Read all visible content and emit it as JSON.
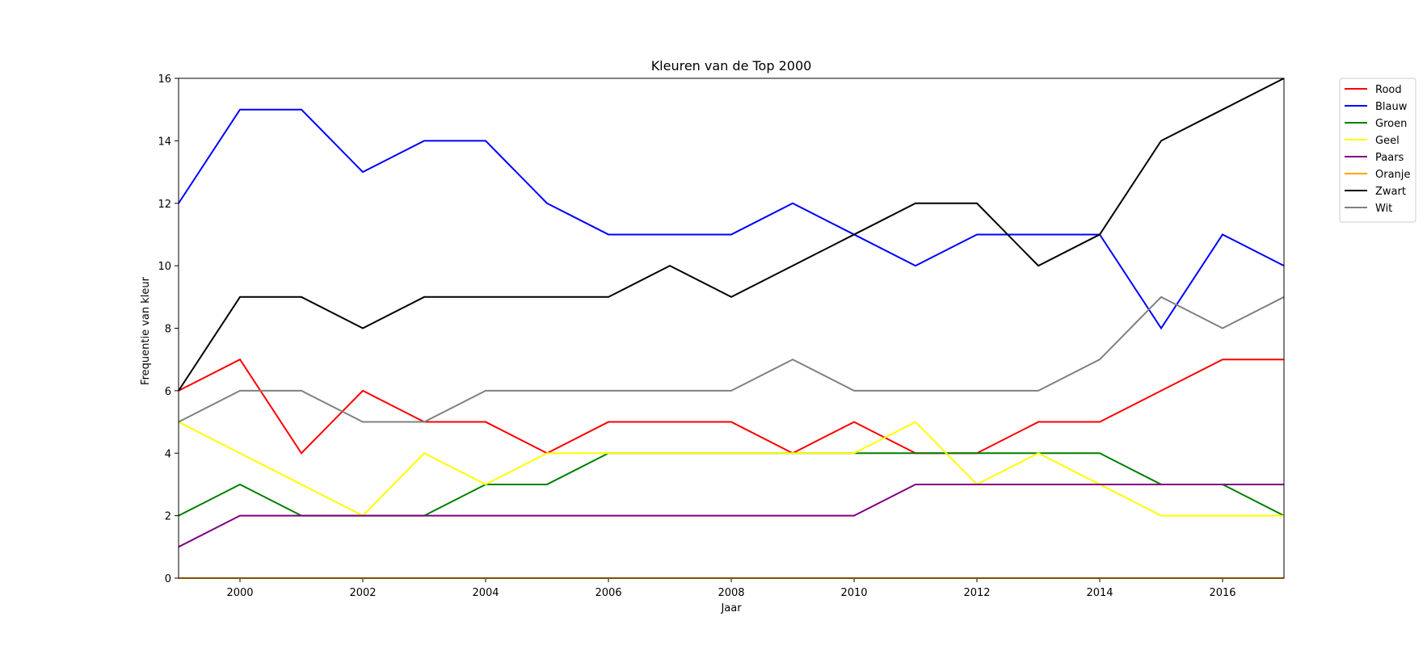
{
  "chart_data": {
    "type": "line",
    "title": "Kleuren van de Top 2000",
    "xlabel": "Jaar",
    "ylabel": "Frequentie van kleur",
    "xlim": [
      1999,
      2017
    ],
    "ylim": [
      0,
      16
    ],
    "x_ticks": [
      2000,
      2002,
      2004,
      2006,
      2008,
      2010,
      2012,
      2014,
      2016
    ],
    "y_ticks": [
      0,
      2,
      4,
      6,
      8,
      10,
      12,
      14,
      16
    ],
    "grid": false,
    "legend_position": "outside-top-right",
    "x": [
      1999,
      2000,
      2001,
      2002,
      2003,
      2004,
      2005,
      2006,
      2007,
      2008,
      2009,
      2010,
      2011,
      2012,
      2013,
      2014,
      2015,
      2016,
      2017
    ],
    "series": [
      {
        "name": "Rood",
        "color": "#ff0000",
        "values": [
          6,
          7,
          4,
          6,
          5,
          5,
          4,
          5,
          5,
          5,
          4,
          5,
          4,
          4,
          5,
          5,
          6,
          7,
          7
        ]
      },
      {
        "name": "Blauw",
        "color": "#0000ff",
        "values": [
          12,
          15,
          15,
          13,
          14,
          14,
          12,
          11,
          11,
          11,
          12,
          11,
          10,
          11,
          11,
          11,
          8,
          11,
          10
        ]
      },
      {
        "name": "Groen",
        "color": "#008000",
        "values": [
          2,
          3,
          2,
          2,
          2,
          3,
          3,
          4,
          4,
          4,
          4,
          4,
          4,
          4,
          4,
          4,
          3,
          3,
          2
        ]
      },
      {
        "name": "Geel",
        "color": "#ffff00",
        "values": [
          5,
          4,
          3,
          2,
          4,
          3,
          4,
          4,
          4,
          4,
          4,
          4,
          5,
          3,
          4,
          3,
          2,
          2,
          2
        ]
      },
      {
        "name": "Paars",
        "color": "#800080",
        "values": [
          1,
          2,
          2,
          2,
          2,
          2,
          2,
          2,
          2,
          2,
          2,
          2,
          3,
          3,
          3,
          3,
          3,
          3,
          3
        ]
      },
      {
        "name": "Oranje",
        "color": "#ffa500",
        "values": [
          0,
          0,
          0,
          0,
          0,
          0,
          0,
          0,
          0,
          0,
          0,
          0,
          0,
          0,
          0,
          0,
          0,
          0,
          0
        ]
      },
      {
        "name": "Zwart",
        "color": "#000000",
        "values": [
          6,
          9,
          9,
          8,
          9,
          9,
          9,
          9,
          10,
          9,
          10,
          11,
          12,
          12,
          10,
          11,
          14,
          15,
          16
        ]
      },
      {
        "name": "Wit",
        "color": "#808080",
        "values": [
          5,
          6,
          6,
          5,
          5,
          6,
          6,
          6,
          6,
          6,
          7,
          6,
          6,
          6,
          6,
          7,
          9,
          8,
          9
        ]
      }
    ]
  }
}
